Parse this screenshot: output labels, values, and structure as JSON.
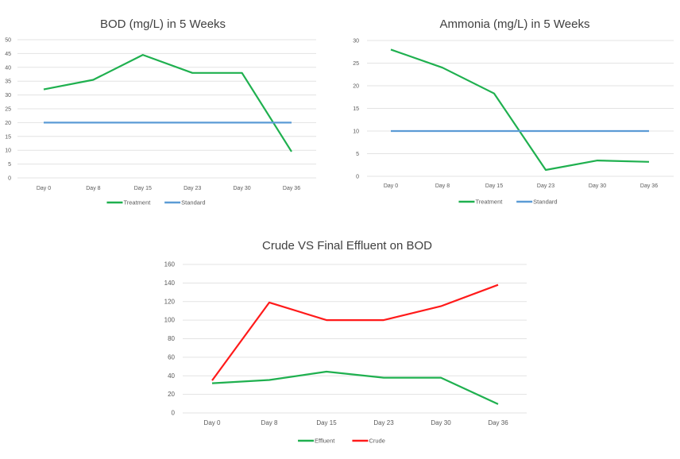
{
  "chart_data": [
    {
      "type": "line",
      "title": "BOD (mg/L) in 5 Weeks",
      "categories": [
        "Day 0",
        "Day 8",
        "Day 15",
        "Day 23",
        "Day 30",
        "Day 36"
      ],
      "ylim": [
        0,
        50
      ],
      "yticks": [
        0,
        5,
        10,
        15,
        20,
        25,
        30,
        35,
        40,
        45,
        50
      ],
      "grid": true,
      "legend": "bottom",
      "series": [
        {
          "name": "Treatment",
          "color": "#1fb04f",
          "values": [
            32,
            35.5,
            44.5,
            38,
            38,
            9.5
          ]
        },
        {
          "name": "Standard",
          "color": "#5b9bd5",
          "values": [
            20,
            20,
            20,
            20,
            20,
            20
          ]
        }
      ]
    },
    {
      "type": "line",
      "title": "Ammonia (mg/L) in 5 Weeks",
      "categories": [
        "Day 0",
        "Day 8",
        "Day 15",
        "Day 23",
        "Day 30",
        "Day 36"
      ],
      "ylim": [
        0,
        30
      ],
      "yticks": [
        0,
        5,
        10,
        15,
        20,
        25,
        30
      ],
      "grid": true,
      "legend": "bottom",
      "series": [
        {
          "name": "Treatment",
          "color": "#1fb04f",
          "values": [
            28,
            24,
            18.3,
            1.4,
            3.5,
            3.2
          ]
        },
        {
          "name": "Standard",
          "color": "#5b9bd5",
          "values": [
            10,
            10,
            10,
            10,
            10,
            10
          ]
        }
      ]
    },
    {
      "type": "line",
      "title": "Crude VS Final Effluent on BOD",
      "categories": [
        "Day 0",
        "Day 8",
        "Day 15",
        "Day 23",
        "Day 30",
        "Day 36"
      ],
      "ylim": [
        0,
        160
      ],
      "yticks": [
        0,
        20,
        40,
        60,
        80,
        100,
        120,
        140,
        160
      ],
      "grid": true,
      "legend": "bottom",
      "series": [
        {
          "name": "Effluent",
          "color": "#1fb04f",
          "values": [
            32,
            35.5,
            44.5,
            38,
            38,
            9.5
          ]
        },
        {
          "name": "Crude",
          "color": "#ff1a1a",
          "values": [
            35,
            119,
            100,
            100,
            115,
            138
          ]
        }
      ]
    }
  ]
}
